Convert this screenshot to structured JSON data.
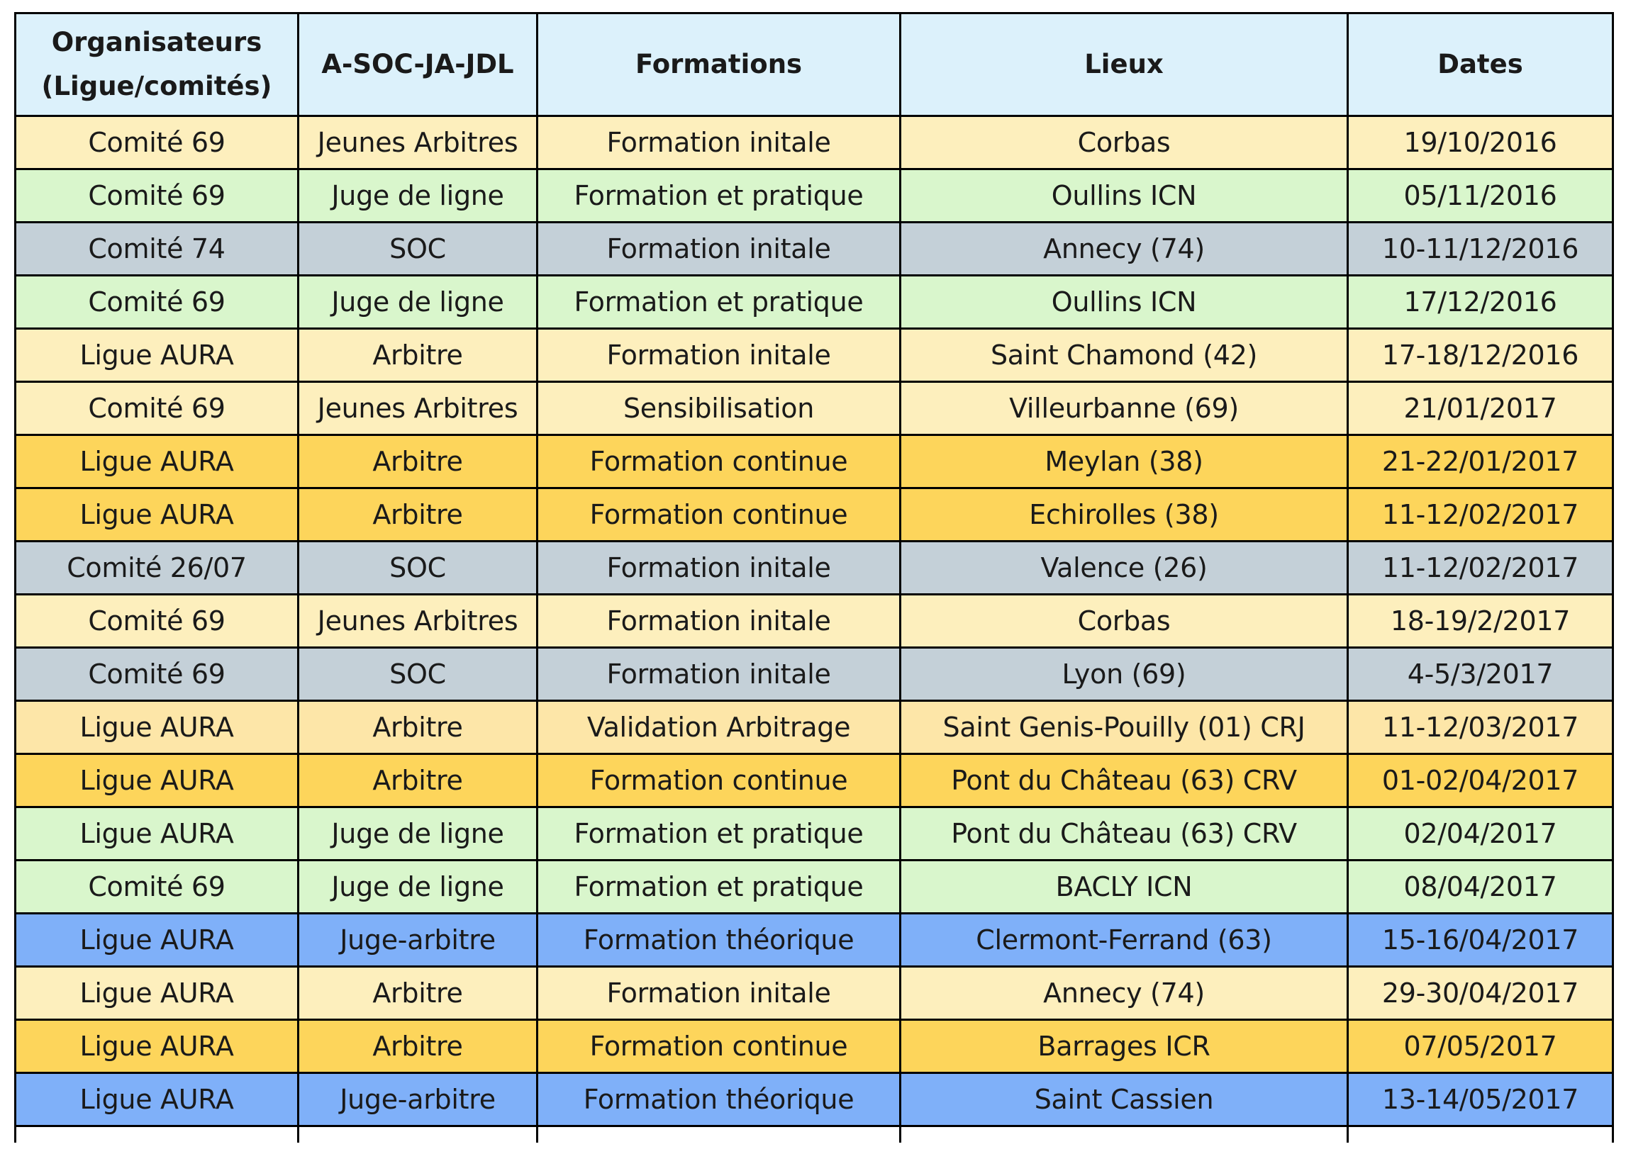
{
  "table": {
    "headers": {
      "organisateurs_line1": "Organisateurs",
      "organisateurs_line2": "(Ligue/comités)",
      "category": "A-SOC-JA-JDL",
      "formations": "Formations",
      "lieux": "Lieux",
      "dates": "Dates"
    },
    "row_colors": {
      "yellow": "#fdefbd",
      "green": "#d9f6cc",
      "gray": "#c4d0d8",
      "orange": "#fdd55b",
      "blue": "#7fb0f9",
      "pale": "#fde6a8",
      "header": "#dcf1fb"
    },
    "rows": [
      {
        "organisateur": "Comité 69",
        "categorie": "Jeunes Arbitres",
        "formation": "Formation initale",
        "lieu": "Corbas",
        "date": "19/10/2016",
        "color": "yellow"
      },
      {
        "organisateur": "Comité 69",
        "categorie": "Juge de ligne",
        "formation": "Formation et pratique",
        "lieu": "Oullins ICN",
        "date": "05/11/2016",
        "color": "green"
      },
      {
        "organisateur": "Comité 74",
        "categorie": "SOC",
        "formation": "Formation initale",
        "lieu": "Annecy (74)",
        "date": "10-11/12/2016",
        "color": "gray"
      },
      {
        "organisateur": "Comité 69",
        "categorie": "Juge de ligne",
        "formation": "Formation et pratique",
        "lieu": "Oullins ICN",
        "date": "17/12/2016",
        "color": "green"
      },
      {
        "organisateur": "Ligue AURA",
        "categorie": "Arbitre",
        "formation": "Formation initale",
        "lieu": "Saint Chamond (42)",
        "date": "17-18/12/2016",
        "color": "yellow"
      },
      {
        "organisateur": "Comité 69",
        "categorie": "Jeunes Arbitres",
        "formation": "Sensibilisation",
        "lieu": "Villeurbanne (69)",
        "date": "21/01/2017",
        "color": "yellow"
      },
      {
        "organisateur": "Ligue AURA",
        "categorie": "Arbitre",
        "formation": "Formation continue",
        "lieu": "Meylan (38)",
        "date": "21-22/01/2017",
        "color": "orange"
      },
      {
        "organisateur": "Ligue AURA",
        "categorie": "Arbitre",
        "formation": "Formation continue",
        "lieu": "Echirolles (38)",
        "date": "11-12/02/2017",
        "color": "orange"
      },
      {
        "organisateur": "Comité 26/07",
        "categorie": "SOC",
        "formation": "Formation initale",
        "lieu": "Valence (26)",
        "date": "11-12/02/2017",
        "color": "gray"
      },
      {
        "organisateur": "Comité 69",
        "categorie": "Jeunes Arbitres",
        "formation": "Formation initale",
        "lieu": "Corbas",
        "date": "18-19/2/2017",
        "color": "yellow"
      },
      {
        "organisateur": "Comité 69",
        "categorie": "SOC",
        "formation": "Formation initale",
        "lieu": "Lyon (69)",
        "date": "4-5/3/2017",
        "color": "gray"
      },
      {
        "organisateur": "Ligue AURA",
        "categorie": "Arbitre",
        "formation": "Validation Arbitrage",
        "lieu": "Saint Genis-Pouilly (01) CRJ",
        "date": "11-12/03/2017",
        "color": "pale"
      },
      {
        "organisateur": "Ligue AURA",
        "categorie": "Arbitre",
        "formation": "Formation continue",
        "lieu": "Pont du Château (63) CRV",
        "date": "01-02/04/2017",
        "color": "orange"
      },
      {
        "organisateur": "Ligue AURA",
        "categorie": "Juge de ligne",
        "formation": "Formation et pratique",
        "lieu": "Pont du Château (63) CRV",
        "date": "02/04/2017",
        "color": "green"
      },
      {
        "organisateur": "Comité 69",
        "categorie": "Juge de ligne",
        "formation": "Formation et pratique",
        "lieu": "BACLY  ICN",
        "date": "08/04/2017",
        "color": "green"
      },
      {
        "organisateur": "Ligue AURA",
        "categorie": "Juge-arbitre",
        "formation": "Formation théorique",
        "lieu": "Clermont-Ferrand (63)",
        "date": "15-16/04/2017",
        "color": "blue"
      },
      {
        "organisateur": "Ligue AURA",
        "categorie": "Arbitre",
        "formation": "Formation initale",
        "lieu": "Annecy (74)",
        "date": "29-30/04/2017",
        "color": "yellow"
      },
      {
        "organisateur": "Ligue AURA",
        "categorie": "Arbitre",
        "formation": "Formation continue",
        "lieu": "Barrages ICR",
        "date": "07/05/2017",
        "color": "orange"
      },
      {
        "organisateur": "Ligue AURA",
        "categorie": "Juge-arbitre",
        "formation": "Formation théorique",
        "lieu": "Saint Cassien",
        "date": "13-14/05/2017",
        "color": "blue"
      }
    ]
  }
}
